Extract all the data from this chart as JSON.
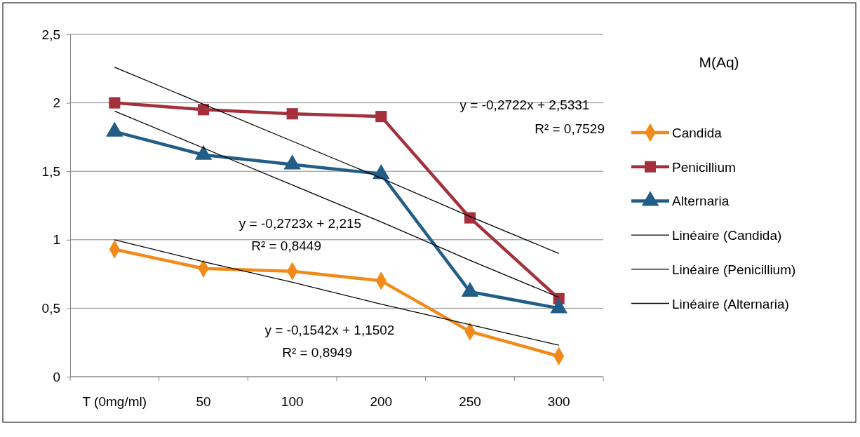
{
  "chart_data": {
    "type": "line",
    "title": "M(Aq)",
    "categories": [
      "T (0mg/ml)",
      "50",
      "100",
      "200",
      "250",
      "300"
    ],
    "series": [
      {
        "name": "Candida",
        "color": "#f28a1a",
        "marker": "diamond",
        "values": [
          0.93,
          0.79,
          0.77,
          0.7,
          0.33,
          0.15
        ]
      },
      {
        "name": "Penicillium",
        "color": "#a3303a",
        "marker": "square",
        "values": [
          2.0,
          1.95,
          1.92,
          1.9,
          1.16,
          0.57
        ]
      },
      {
        "name": "Alternaria",
        "color": "#215d87",
        "marker": "triangle",
        "values": [
          1.79,
          1.62,
          1.55,
          1.48,
          0.62,
          0.5
        ]
      },
      {
        "name": "Linéaire (Candida)",
        "color": "#000000",
        "marker": "none",
        "values": [
          1.0,
          0.84,
          0.69,
          0.53,
          0.38,
          0.23
        ]
      },
      {
        "name": "Linéaire (Penicillium)",
        "color": "#000000",
        "marker": "none",
        "values": [
          2.26,
          1.99,
          1.72,
          1.45,
          1.17,
          0.9
        ]
      },
      {
        "name": "Linéaire (Alternaria)",
        "color": "#000000",
        "marker": "none",
        "values": [
          1.94,
          1.67,
          1.4,
          1.13,
          0.85,
          0.58
        ]
      }
    ],
    "ylim": [
      0,
      2.5
    ],
    "yticks": [
      0,
      {
        "value": 0.5,
        "label": "0,5"
      },
      1,
      {
        "value": 1.5,
        "label": "1,5"
      },
      2,
      {
        "value": 2.5,
        "label": "2,5"
      }
    ],
    "grid": "y",
    "legend": "right",
    "line_style": "solid",
    "annotations": [
      "y = -0,2722x + 2,5331",
      "R² = 0,7529",
      "y = -0,2723x + 2,215",
      "R² = 0,8449",
      "y = -0,1542x + 1,1502",
      "R² = 0,8949"
    ]
  }
}
